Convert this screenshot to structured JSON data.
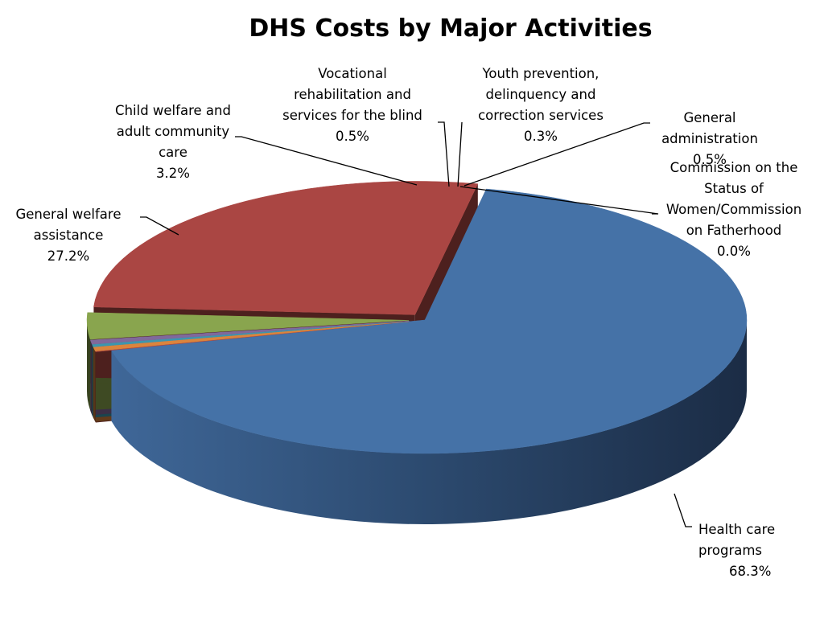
{
  "chart_data": {
    "type": "pie",
    "title": "DHS Costs by Major Activities",
    "slices": [
      {
        "key": "health",
        "label_lines": [
          "Health care",
          "programs"
        ],
        "value": 68.3,
        "value_label": "68.3%",
        "color": "#4572a7",
        "exploded": false
      },
      {
        "key": "commission",
        "label_lines": [
          "Commission on the",
          "Status of",
          "Women/Commission",
          "on Fatherhood"
        ],
        "value": 0.0,
        "value_label": "0.0%",
        "color": "#aa4643",
        "exploded": true
      },
      {
        "key": "genadmin",
        "label_lines": [
          "General",
          "administration"
        ],
        "value": 0.5,
        "value_label": "0.5%",
        "color": "#db843d",
        "exploded": true
      },
      {
        "key": "youth",
        "label_lines": [
          "Youth prevention,",
          "delinquency and",
          "correction services"
        ],
        "value": 0.3,
        "value_label": "0.3%",
        "color": "#3d96ae",
        "exploded": true
      },
      {
        "key": "vocational",
        "label_lines": [
          "Vocational",
          "rehabilitation and",
          "services for the blind"
        ],
        "value": 0.5,
        "value_label": "0.5%",
        "color": "#80699b",
        "exploded": true
      },
      {
        "key": "childwelfare",
        "label_lines": [
          "Child welfare and",
          "adult community",
          "care"
        ],
        "value": 3.2,
        "value_label": "3.2%",
        "color": "#89a54e",
        "exploded": true
      },
      {
        "key": "genwelfare",
        "label_lines": [
          "General welfare",
          "assistance"
        ],
        "value": 27.2,
        "value_label": "27.2%",
        "color": "#aa4643",
        "exploded": true
      }
    ],
    "legend": "none",
    "style": "3d-exploded"
  }
}
